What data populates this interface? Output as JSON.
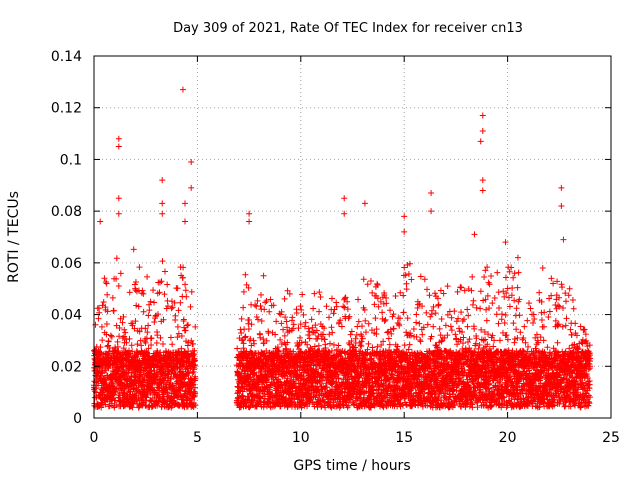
{
  "chart_data": {
    "type": "scatter",
    "title": "Day 309 of 2021, Rate Of TEC Index for receiver cn13",
    "xlabel": "GPS time / hours",
    "ylabel": "ROTI / TECUs",
    "xlim": [
      0,
      25
    ],
    "ylim": [
      0,
      0.14
    ],
    "xticks": [
      "0",
      "5",
      "10",
      "15",
      "20",
      "25"
    ],
    "yticks": [
      "0",
      "0.02",
      "0.04",
      "0.06",
      "0.08",
      "0.1",
      "0.12",
      "0.14"
    ],
    "grid": true,
    "marker": "+",
    "color": "#ff0000",
    "data_gap_hours": [
      4.9,
      6.9
    ],
    "x_extent": [
      0,
      24
    ],
    "outliers": [
      {
        "x": 1.2,
        "y": 0.108
      },
      {
        "x": 1.2,
        "y": 0.105
      },
      {
        "x": 3.3,
        "y": 0.092
      },
      {
        "x": 3.3,
        "y": 0.083
      },
      {
        "x": 3.3,
        "y": 0.079
      },
      {
        "x": 4.3,
        "y": 0.127
      },
      {
        "x": 4.7,
        "y": 0.099
      },
      {
        "x": 4.7,
        "y": 0.089
      },
      {
        "x": 4.4,
        "y": 0.083
      },
      {
        "x": 4.4,
        "y": 0.076
      },
      {
        "x": 0.3,
        "y": 0.076
      },
      {
        "x": 1.2,
        "y": 0.085
      },
      {
        "x": 1.2,
        "y": 0.079
      },
      {
        "x": 7.5,
        "y": 0.079
      },
      {
        "x": 7.5,
        "y": 0.076
      },
      {
        "x": 12.1,
        "y": 0.085
      },
      {
        "x": 12.1,
        "y": 0.079
      },
      {
        "x": 13.1,
        "y": 0.083
      },
      {
        "x": 15.0,
        "y": 0.078
      },
      {
        "x": 15.0,
        "y": 0.072
      },
      {
        "x": 16.3,
        "y": 0.087
      },
      {
        "x": 16.3,
        "y": 0.08
      },
      {
        "x": 18.8,
        "y": 0.117
      },
      {
        "x": 18.8,
        "y": 0.111
      },
      {
        "x": 18.7,
        "y": 0.107
      },
      {
        "x": 18.8,
        "y": 0.092
      },
      {
        "x": 18.8,
        "y": 0.088
      },
      {
        "x": 18.4,
        "y": 0.071
      },
      {
        "x": 19.9,
        "y": 0.068
      },
      {
        "x": 22.6,
        "y": 0.089
      },
      {
        "x": 22.6,
        "y": 0.082
      },
      {
        "x": 22.7,
        "y": 0.069
      },
      {
        "x": 20.5,
        "y": 0.062
      },
      {
        "x": 21.7,
        "y": 0.058
      },
      {
        "x": 23.0,
        "y": 0.05
      },
      {
        "x": 8.2,
        "y": 0.055
      }
    ],
    "envelope_hours": [
      {
        "x": 0.0,
        "y": 0.03
      },
      {
        "x": 0.3,
        "y": 0.058
      },
      {
        "x": 0.8,
        "y": 0.052
      },
      {
        "x": 1.1,
        "y": 0.068
      },
      {
        "x": 1.5,
        "y": 0.048
      },
      {
        "x": 1.9,
        "y": 0.072
      },
      {
        "x": 2.3,
        "y": 0.055
      },
      {
        "x": 2.6,
        "y": 0.058
      },
      {
        "x": 3.0,
        "y": 0.05
      },
      {
        "x": 3.4,
        "y": 0.065
      },
      {
        "x": 3.8,
        "y": 0.045
      },
      {
        "x": 4.2,
        "y": 0.06
      },
      {
        "x": 4.6,
        "y": 0.064
      },
      {
        "x": 4.9,
        "y": 0.035
      },
      {
        "x": 6.9,
        "y": 0.03
      },
      {
        "x": 7.3,
        "y": 0.062
      },
      {
        "x": 7.7,
        "y": 0.05
      },
      {
        "x": 8.5,
        "y": 0.046
      },
      {
        "x": 9.5,
        "y": 0.05
      },
      {
        "x": 10.5,
        "y": 0.048
      },
      {
        "x": 11.5,
        "y": 0.05
      },
      {
        "x": 12.5,
        "y": 0.047
      },
      {
        "x": 13.3,
        "y": 0.058
      },
      {
        "x": 14.3,
        "y": 0.046
      },
      {
        "x": 15.2,
        "y": 0.062
      },
      {
        "x": 16.0,
        "y": 0.056
      },
      {
        "x": 16.8,
        "y": 0.054
      },
      {
        "x": 17.6,
        "y": 0.05
      },
      {
        "x": 18.2,
        "y": 0.056
      },
      {
        "x": 19.0,
        "y": 0.06
      },
      {
        "x": 19.7,
        "y": 0.057
      },
      {
        "x": 20.3,
        "y": 0.06
      },
      {
        "x": 21.0,
        "y": 0.05
      },
      {
        "x": 21.8,
        "y": 0.052
      },
      {
        "x": 22.5,
        "y": 0.058
      },
      {
        "x": 23.2,
        "y": 0.045
      },
      {
        "x": 24.0,
        "y": 0.03
      }
    ]
  }
}
